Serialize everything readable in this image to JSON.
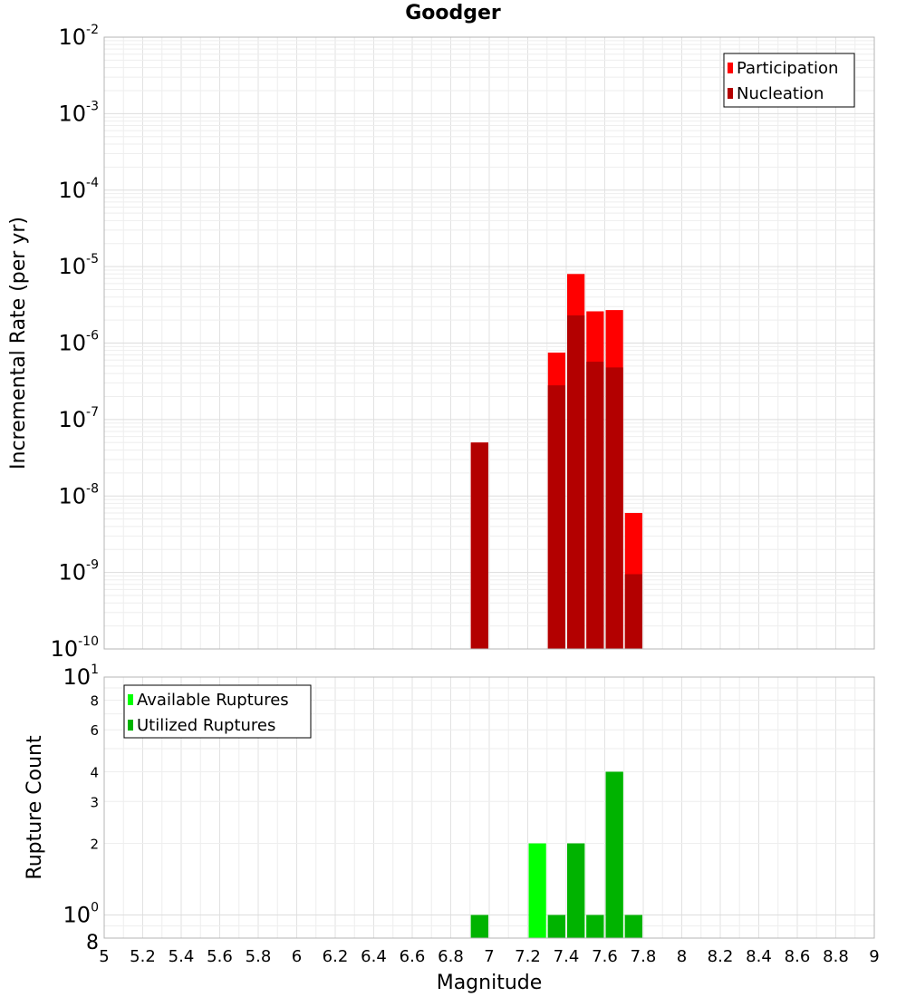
{
  "chart_data": [
    {
      "type": "bar",
      "title": "Goodger",
      "xlabel": "Magnitude",
      "ylabel": "Incremental Rate (per yr)",
      "yscale": "log",
      "xlim": [
        5,
        9
      ],
      "ylim": [
        1e-10,
        0.01
      ],
      "grid": true,
      "legend_position": "top-right",
      "x_ticks": [
        "5",
        "5.2",
        "5.4",
        "5.6",
        "5.8",
        "6",
        "6.2",
        "6.4",
        "6.6",
        "6.8",
        "7",
        "7.2",
        "7.4",
        "7.6",
        "7.8",
        "8",
        "8.2",
        "8.4",
        "8.6",
        "8.8",
        "9"
      ],
      "y_ticks": [
        {
          "value": 0.01,
          "base": "10",
          "exp": "-2"
        },
        {
          "value": 0.001,
          "base": "10",
          "exp": "-3"
        },
        {
          "value": 0.0001,
          "base": "10",
          "exp": "-4"
        },
        {
          "value": 1e-05,
          "base": "10",
          "exp": "-5"
        },
        {
          "value": 1e-06,
          "base": "10",
          "exp": "-6"
        },
        {
          "value": 1e-07,
          "base": "10",
          "exp": "-7"
        },
        {
          "value": 1e-08,
          "base": "10",
          "exp": "-8"
        },
        {
          "value": 1e-09,
          "base": "10",
          "exp": "-9"
        },
        {
          "value": 1e-10,
          "base": "10",
          "exp": "-10"
        }
      ],
      "series": [
        {
          "name": "Participation",
          "color": "#ff0000",
          "points": [
            {
              "x": 6.95,
              "y": 5e-08
            },
            {
              "x": 7.35,
              "y": 7.5e-07
            },
            {
              "x": 7.45,
              "y": 8e-06
            },
            {
              "x": 7.55,
              "y": 2.6e-06
            },
            {
              "x": 7.65,
              "y": 2.7e-06
            },
            {
              "x": 7.75,
              "y": 6e-09
            }
          ]
        },
        {
          "name": "Nucleation",
          "color": "#b30000",
          "points": [
            {
              "x": 6.95,
              "y": 5e-08
            },
            {
              "x": 7.35,
              "y": 2.8e-07
            },
            {
              "x": 7.45,
              "y": 2.3e-06
            },
            {
              "x": 7.55,
              "y": 5.7e-07
            },
            {
              "x": 7.65,
              "y": 4.8e-07
            },
            {
              "x": 7.75,
              "y": 9.5e-10
            }
          ]
        }
      ]
    },
    {
      "type": "bar",
      "title": "",
      "xlabel": "Magnitude",
      "ylabel": "Rupture Count",
      "yscale": "log",
      "xlim": [
        5,
        9
      ],
      "ylim": [
        0.8,
        10
      ],
      "grid": true,
      "legend_position": "top-left",
      "y_ticks": [
        {
          "value": 10,
          "base": "10",
          "exp": "1",
          "major": true
        },
        {
          "value": 8,
          "label": "8"
        },
        {
          "value": 6,
          "label": "6"
        },
        {
          "value": 4,
          "label": "4"
        },
        {
          "value": 3,
          "label": "3"
        },
        {
          "value": 2,
          "label": "2"
        },
        {
          "value": 1,
          "base": "10",
          "exp": "0",
          "major": true
        },
        {
          "value": 0.8,
          "label": "8",
          "major": true
        }
      ],
      "series": [
        {
          "name": "Available Ruptures",
          "color": "#00ff00",
          "points": [
            {
              "x": 6.95,
              "y": 1
            },
            {
              "x": 7.25,
              "y": 2
            },
            {
              "x": 7.35,
              "y": 1
            },
            {
              "x": 7.45,
              "y": 2
            },
            {
              "x": 7.55,
              "y": 1
            },
            {
              "x": 7.65,
              "y": 4
            },
            {
              "x": 7.75,
              "y": 1
            }
          ]
        },
        {
          "name": "Utilized Ruptures",
          "color": "#00b300",
          "points": [
            {
              "x": 6.95,
              "y": 1
            },
            {
              "x": 7.35,
              "y": 1
            },
            {
              "x": 7.45,
              "y": 2
            },
            {
              "x": 7.55,
              "y": 1
            },
            {
              "x": 7.65,
              "y": 4
            },
            {
              "x": 7.75,
              "y": 1
            }
          ]
        }
      ]
    }
  ]
}
